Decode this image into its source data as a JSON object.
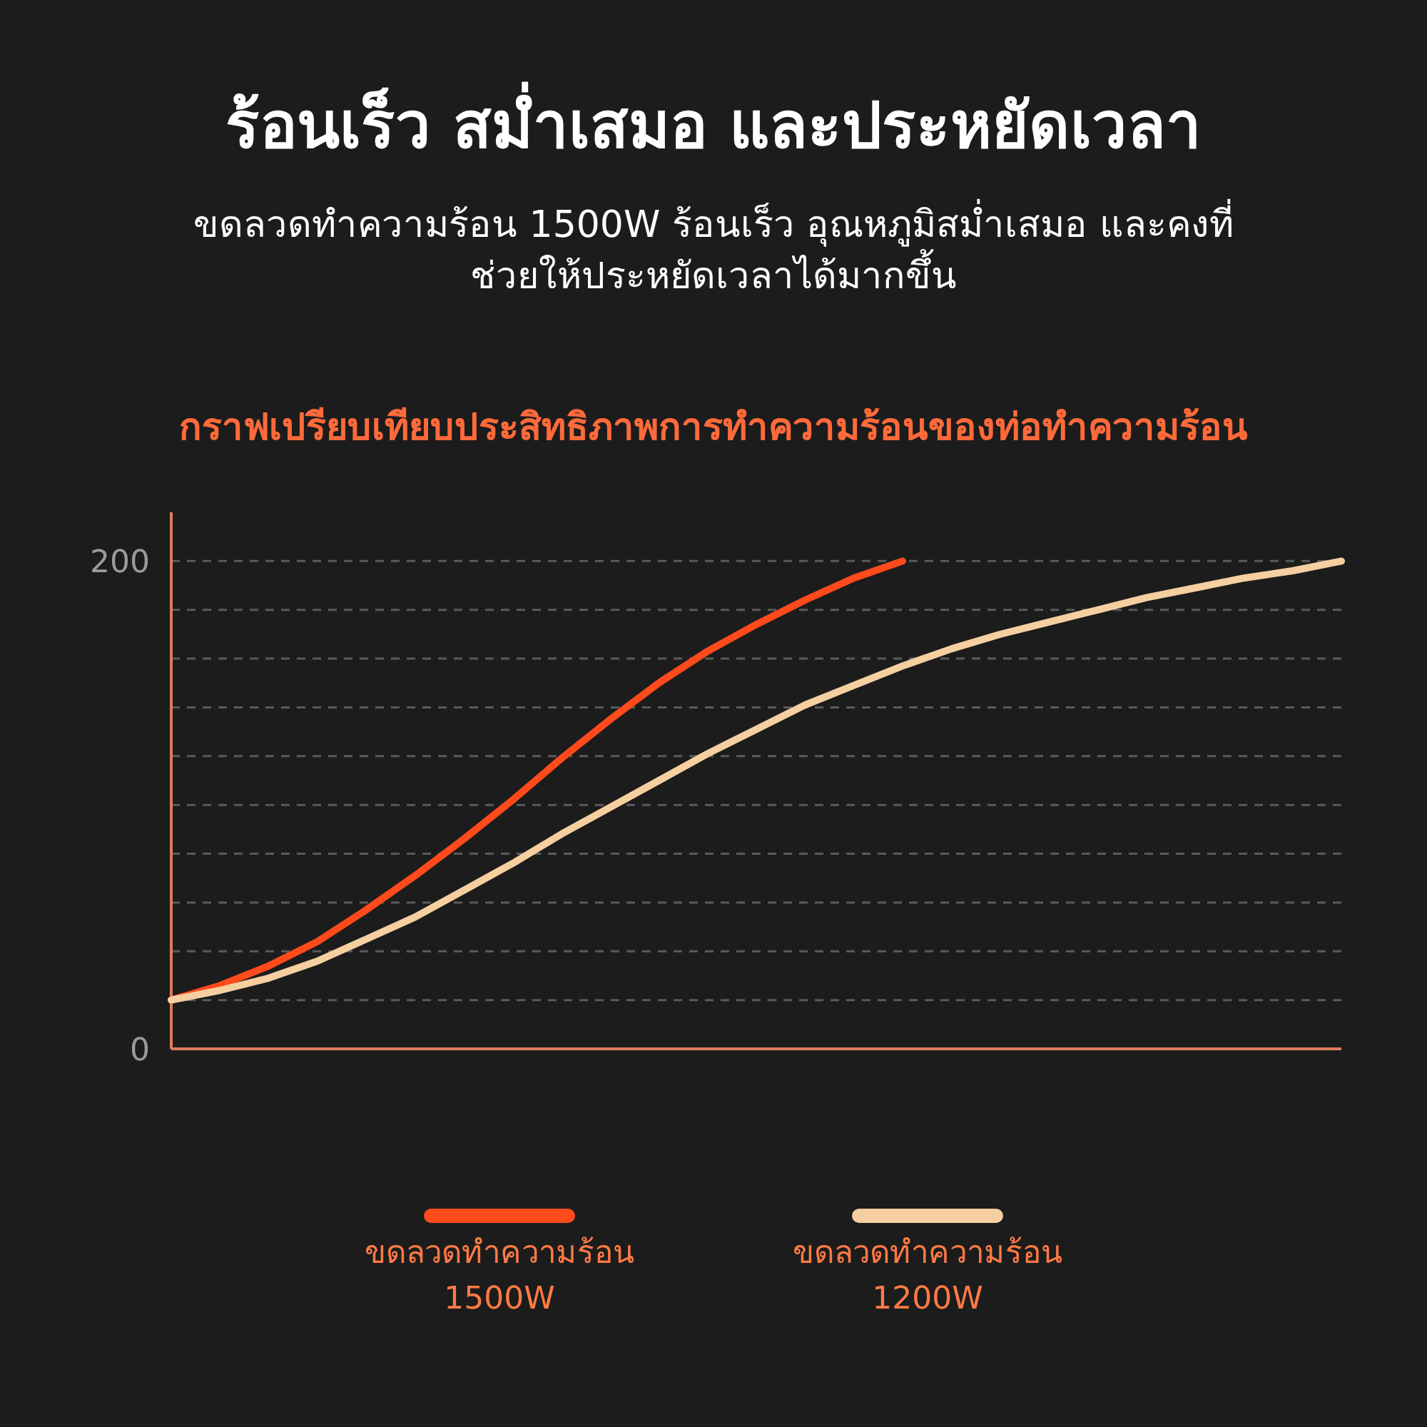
{
  "chart_data": {
    "type": "line",
    "title": "ร้อนเร็ว สม่ำเสมอ และประหยัดเวลา",
    "subtitle": "ขดลวดทำความร้อน 1500W ร้อนเร็ว อุณหภูมิสม่ำเสมอ และคงที่ ช่วยให้ประหยัดเวลาได้มากขึ้น",
    "annotations": [
      "กราฟเปรียบเทียบประสิทธิภาพการทำความร้อนของท่อทำความร้อน"
    ],
    "categories": [
      null,
      null,
      null,
      null,
      null,
      null,
      null,
      null,
      null,
      null,
      null,
      null,
      null,
      null,
      null,
      null,
      null,
      null,
      null,
      null,
      null,
      null,
      null,
      null,
      null
    ],
    "series": [
      {
        "name": "ขดลวดทำความร้อน 1500W",
        "color": "#ff4a1c",
        "values": [
          20,
          26,
          34,
          44,
          57,
          71,
          86,
          102,
          119,
          135,
          150,
          163,
          174,
          184,
          193,
          200,
          null,
          null,
          null,
          null,
          null,
          null,
          null,
          null,
          null
        ]
      },
      {
        "name": "ขดลวดทำความร้อน 1200W",
        "color": "#f5cfa0",
        "values": [
          20,
          24,
          29,
          36,
          45,
          54,
          65,
          76,
          88,
          99,
          110,
          121,
          131,
          141,
          149,
          157,
          164,
          170,
          175,
          180,
          185,
          189,
          193,
          196,
          200
        ]
      }
    ],
    "ylim": [
      0,
      220
    ],
    "yticks": [
      0,
      {
        "value": 20,
        "label": null
      },
      {
        "value": 40,
        "label": null
      },
      {
        "value": 60,
        "label": null
      },
      {
        "value": 80,
        "label": null
      },
      {
        "value": 100,
        "label": null
      },
      {
        "value": 120,
        "label": null
      },
      {
        "value": 140,
        "label": null
      },
      {
        "value": 160,
        "label": null
      },
      {
        "value": 180,
        "label": null
      },
      200
    ],
    "grid": "y",
    "legend": "bottom",
    "tick_labels": "y",
    "line_style": "solid",
    "marker": "none"
  }
}
